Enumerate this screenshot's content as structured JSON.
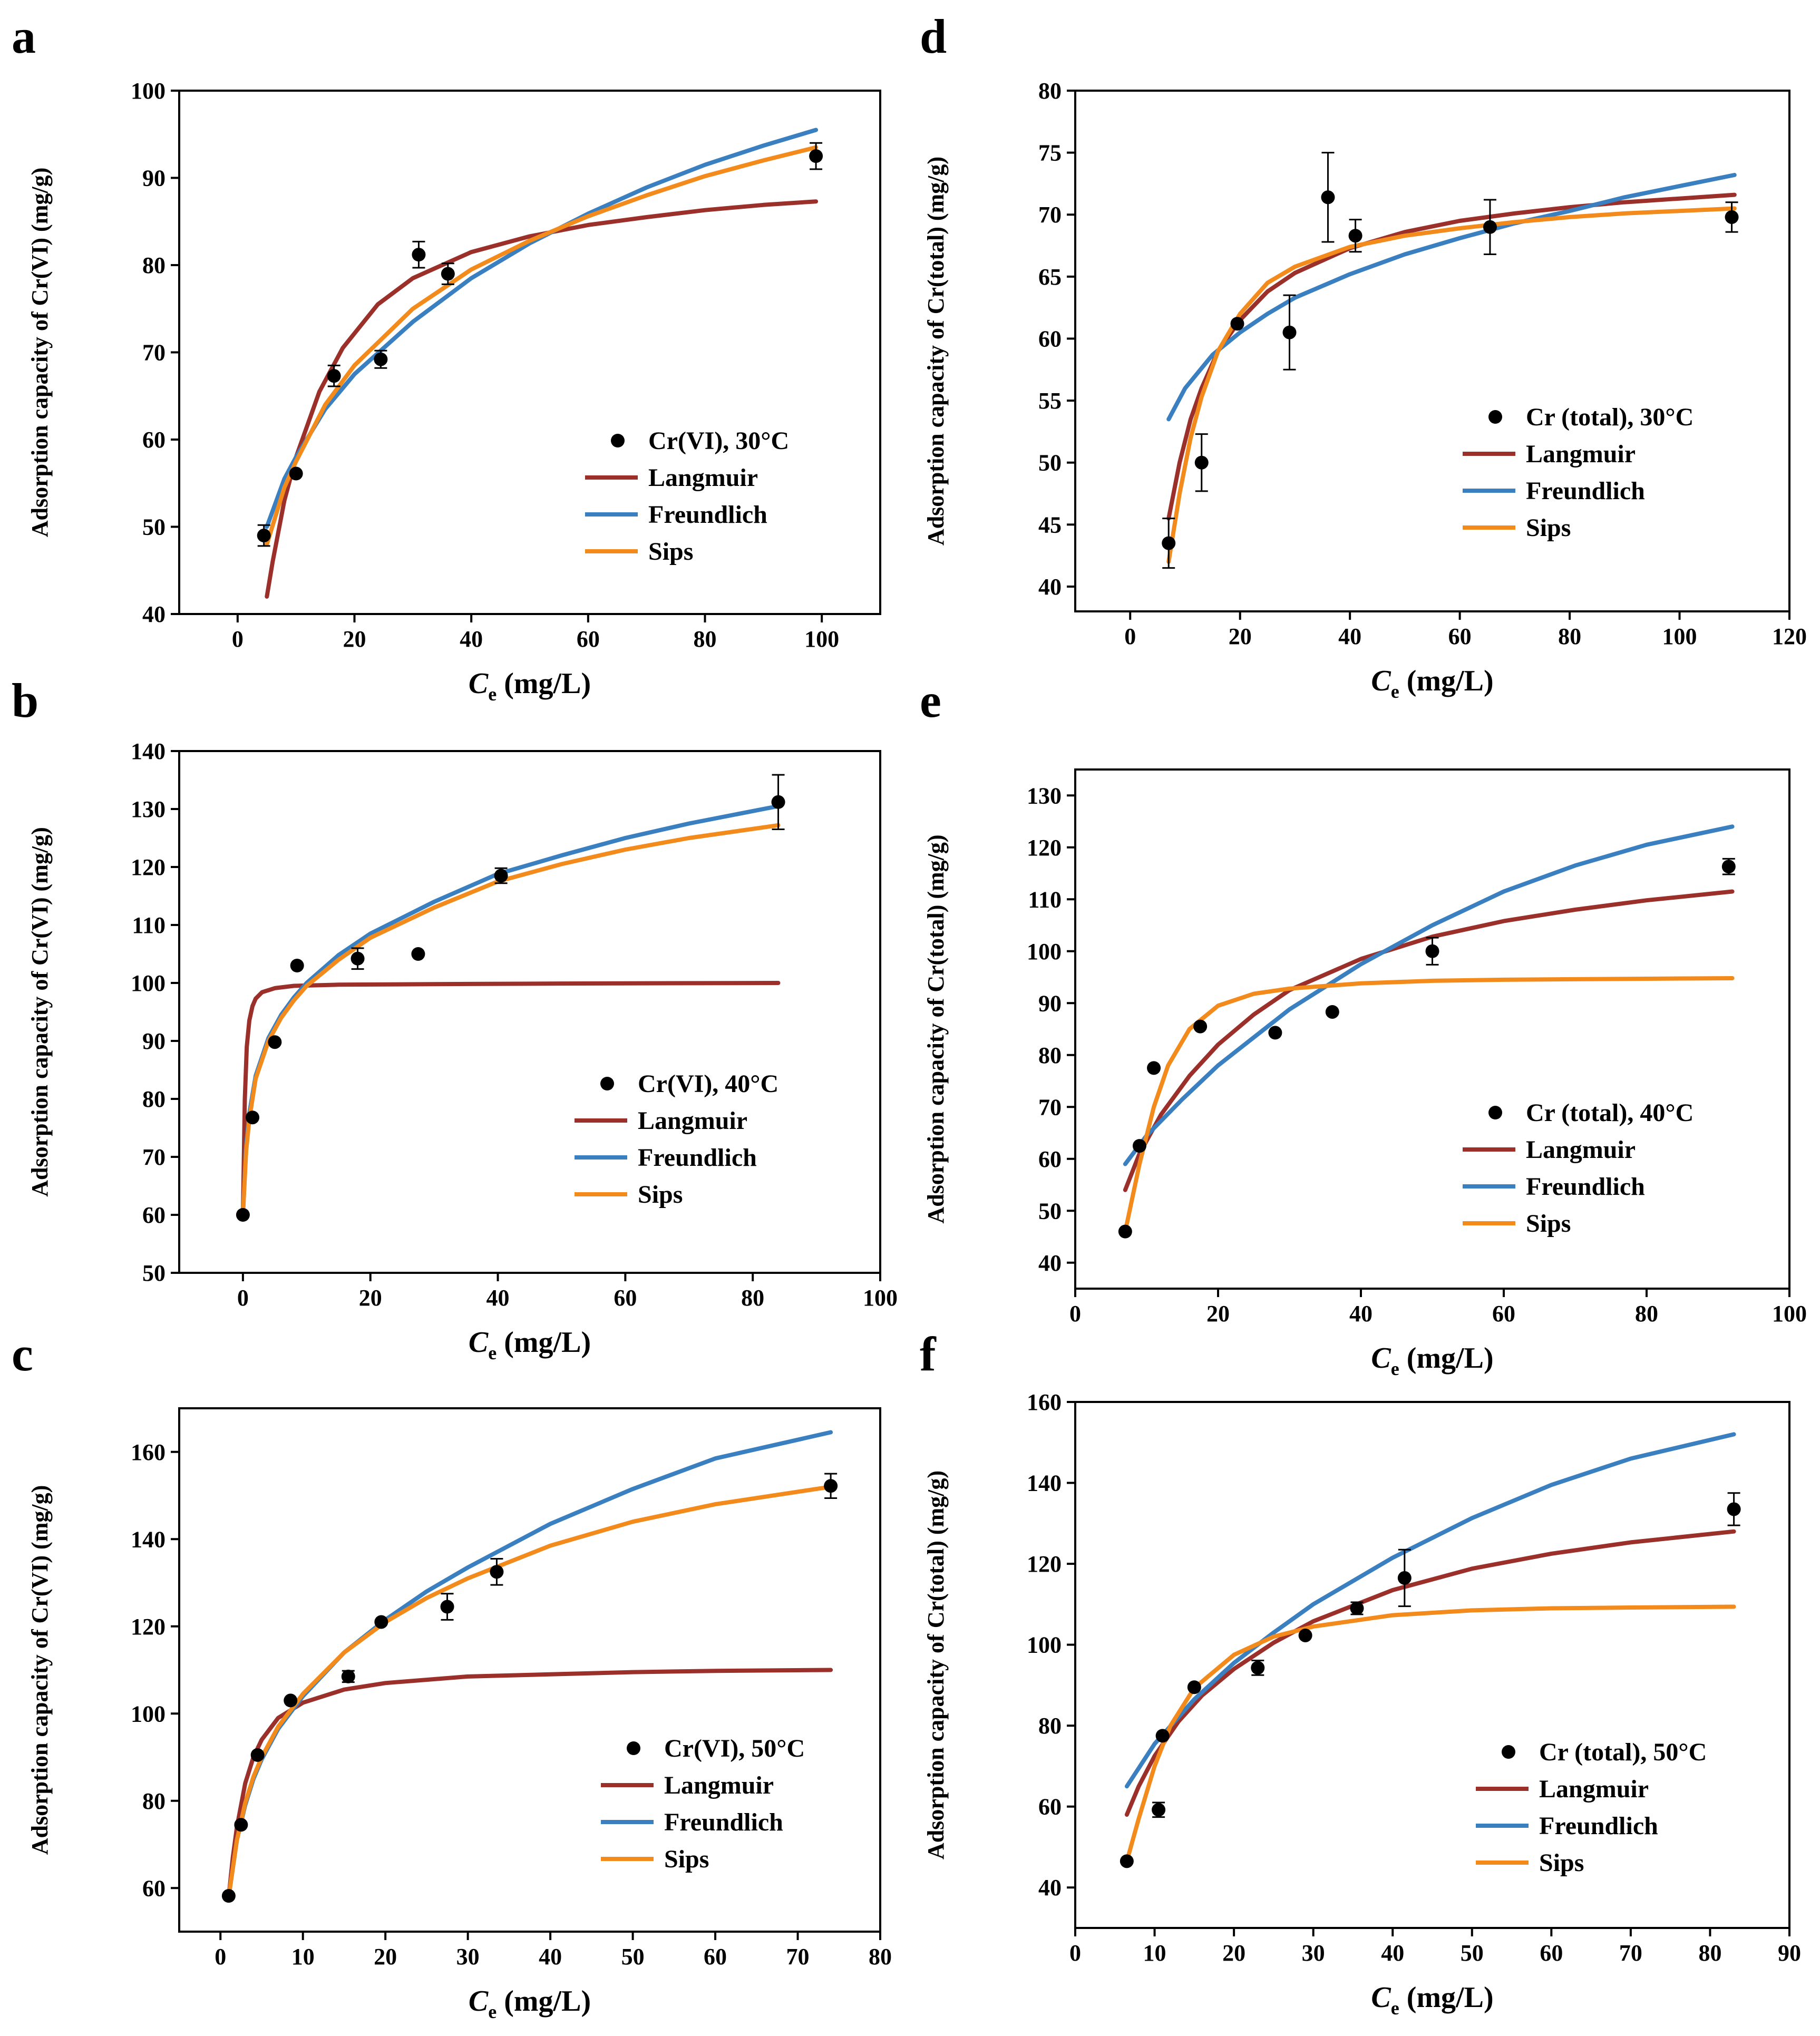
{
  "colors": {
    "Langmuir": "#9b2f2a",
    "Freundlich": "#3a7fbf",
    "Sips": "#f28a1c",
    "points": "#000000"
  },
  "chart_data": [
    {
      "panel": "a",
      "type": "scatter",
      "ylabel": "Adsorption capacity of Cr(VI) (mg/g)",
      "xlabel_base": "C",
      "xlabel_sub": "e",
      "xlabel_unit": " (mg/L)",
      "xlim": [
        -10,
        110
      ],
      "ylim": [
        40,
        100
      ],
      "xticks": [
        0,
        20,
        40,
        60,
        80,
        100
      ],
      "yticks": [
        40,
        50,
        60,
        70,
        80,
        90,
        100
      ],
      "legend": {
        "title": "Cr(VI), 30°C",
        "items": [
          "Langmuir",
          "Freundlich",
          "Sips"
        ]
      },
      "points": [
        {
          "x": 4.5,
          "y": 49,
          "err": 1.2
        },
        {
          "x": 10,
          "y": 56.1,
          "err": 0
        },
        {
          "x": 16.5,
          "y": 67.3,
          "err": 1.2
        },
        {
          "x": 24.5,
          "y": 69.2,
          "err": 1.0
        },
        {
          "x": 31,
          "y": 81.2,
          "err": 1.5
        },
        {
          "x": 36,
          "y": 79,
          "err": 1.2
        },
        {
          "x": 99,
          "y": 92.5,
          "err": 1.5
        }
      ],
      "series": [
        {
          "name": "Langmuir",
          "x": [
            5,
            6,
            8,
            10,
            14,
            18,
            24,
            30,
            40,
            50,
            60,
            70,
            80,
            90,
            99
          ],
          "y": [
            42,
            46,
            53,
            58,
            65.5,
            70.5,
            75.5,
            78.5,
            81.5,
            83.3,
            84.6,
            85.5,
            86.3,
            86.9,
            87.3
          ]
        },
        {
          "name": "Freundlich",
          "x": [
            5,
            8,
            10,
            15,
            20,
            30,
            40,
            50,
            60,
            70,
            80,
            90,
            99
          ],
          "y": [
            50,
            55.5,
            58,
            63.5,
            67.5,
            73.5,
            78.5,
            82.5,
            85.9,
            88.9,
            91.5,
            93.7,
            95.5
          ]
        },
        {
          "name": "Sips",
          "x": [
            5,
            8,
            10,
            15,
            20,
            30,
            40,
            50,
            60,
            70,
            80,
            90,
            99
          ],
          "y": [
            48,
            54.5,
            57.5,
            64,
            68.5,
            75,
            79.5,
            82.8,
            85.6,
            88,
            90.2,
            92,
            93.5
          ]
        }
      ]
    },
    {
      "panel": "b",
      "type": "scatter",
      "ylabel": "Adsorption capacity of Cr(VI) (mg/g)",
      "xlabel_base": "C",
      "xlabel_sub": "e",
      "xlabel_unit": " (mg/L)",
      "xlim": [
        -10,
        100
      ],
      "ylim": [
        50,
        140
      ],
      "xticks": [
        0,
        20,
        40,
        60,
        80,
        100
      ],
      "yticks": [
        50,
        60,
        70,
        80,
        90,
        100,
        110,
        120,
        130,
        140
      ],
      "legend": {
        "title": "Cr(VI), 40°C",
        "items": [
          "Langmuir",
          "Freundlich",
          "Sips"
        ]
      },
      "points": [
        {
          "x": 0,
          "y": 60,
          "err": 0
        },
        {
          "x": 1.5,
          "y": 76.8,
          "err": 0
        },
        {
          "x": 5,
          "y": 89.8,
          "err": 0
        },
        {
          "x": 8.5,
          "y": 103,
          "err": 0
        },
        {
          "x": 18,
          "y": 104.2,
          "err": 1.8
        },
        {
          "x": 27.5,
          "y": 105,
          "err": 0
        },
        {
          "x": 40.5,
          "y": 118.5,
          "err": 1.3
        },
        {
          "x": 84,
          "y": 131.2,
          "err": 4.7
        }
      ],
      "series": [
        {
          "name": "Langmuir",
          "x": [
            0,
            0.3,
            0.6,
            1,
            1.5,
            2,
            3,
            5,
            8,
            15,
            30,
            50,
            84
          ],
          "y": [
            60,
            80,
            89,
            93.5,
            96,
            97.3,
            98.4,
            99.1,
            99.5,
            99.7,
            99.8,
            99.9,
            100
          ]
        },
        {
          "name": "Freundlich",
          "x": [
            0,
            0.5,
            1,
            2,
            4,
            6,
            8,
            10,
            15,
            20,
            30,
            40,
            50,
            60,
            70,
            84
          ],
          "y": [
            60,
            72,
            77.5,
            84,
            90.5,
            94.5,
            97.5,
            100,
            104.8,
            108.5,
            114,
            118.8,
            122,
            125,
            127.5,
            130.5
          ]
        },
        {
          "name": "Sips",
          "x": [
            0,
            0.5,
            1,
            2,
            4,
            6,
            8,
            10,
            15,
            20,
            30,
            40,
            50,
            60,
            70,
            84
          ],
          "y": [
            60,
            71,
            76.5,
            83.5,
            90,
            94,
            97,
            99.5,
            104,
            107.8,
            113,
            117.5,
            120.5,
            123,
            125,
            127.2
          ]
        }
      ]
    },
    {
      "panel": "c",
      "type": "scatter",
      "ylabel": "Adsorption capacity of Cr(VI) (mg/g)",
      "xlabel_base": "C",
      "xlabel_sub": "e",
      "xlabel_unit": " (mg/L)",
      "xlim": [
        -5,
        80
      ],
      "ylim": [
        50,
        170
      ],
      "xticks": [
        0,
        10,
        20,
        30,
        40,
        50,
        60,
        70,
        80
      ],
      "yticks": [
        60,
        80,
        100,
        120,
        140,
        160
      ],
      "legend": {
        "title": "Cr(VI), 50°C",
        "items": [
          "Langmuir",
          "Freundlich",
          "Sips"
        ]
      },
      "points": [
        {
          "x": 1,
          "y": 58.2,
          "err": 0
        },
        {
          "x": 2.5,
          "y": 74.5,
          "err": 0
        },
        {
          "x": 4.5,
          "y": 90.5,
          "err": 0
        },
        {
          "x": 8.5,
          "y": 103,
          "err": 0
        },
        {
          "x": 15.5,
          "y": 108.5,
          "err": 1.3
        },
        {
          "x": 19.5,
          "y": 121,
          "err": 0
        },
        {
          "x": 27.5,
          "y": 124.5,
          "err": 3.0
        },
        {
          "x": 33.5,
          "y": 132.5,
          "err": 3.0
        },
        {
          "x": 74,
          "y": 152.2,
          "err": 2.8
        }
      ],
      "series": [
        {
          "name": "Langmuir",
          "x": [
            1,
            1.5,
            2,
            3,
            4,
            5,
            7,
            10,
            15,
            20,
            30,
            40,
            50,
            60,
            74
          ],
          "y": [
            58,
            67,
            74,
            84,
            90,
            94,
            99,
            102.5,
            105.5,
            107,
            108.5,
            109,
            109.5,
            109.8,
            110
          ]
        },
        {
          "name": "Freundlich",
          "x": [
            1,
            2,
            3,
            4,
            5,
            7,
            10,
            15,
            20,
            25,
            30,
            40,
            50,
            60,
            74
          ],
          "y": [
            58,
            71,
            79,
            85,
            89.5,
            96.5,
            104,
            114,
            121.5,
            128,
            133.5,
            143.5,
            151.5,
            158.5,
            164.5
          ]
        },
        {
          "name": "Sips",
          "x": [
            1,
            2,
            3,
            4,
            5,
            7,
            10,
            15,
            20,
            25,
            30,
            40,
            50,
            60,
            74
          ],
          "y": [
            58,
            71,
            79.5,
            85.5,
            90,
            97,
            104.5,
            114,
            121,
            126.5,
            131,
            138.5,
            144,
            148,
            152
          ]
        }
      ]
    },
    {
      "panel": "d",
      "type": "scatter",
      "ylabel": "Adsorption capacity of Cr(total) (mg/g)",
      "xlabel_base": "C",
      "xlabel_sub": "e",
      "xlabel_unit": " (mg/L)",
      "xlim": [
        -10,
        120
      ],
      "ylim": [
        38,
        80
      ],
      "xticks": [
        0,
        20,
        40,
        60,
        80,
        100,
        120
      ],
      "yticks": [
        40,
        45,
        50,
        55,
        60,
        65,
        70,
        75,
        80
      ],
      "legend": {
        "title": "Cr (total), 30°C",
        "items": [
          "Langmuir",
          "Freundlich",
          "Sips"
        ]
      },
      "points": [
        {
          "x": 7,
          "y": 43.5,
          "err": 2.0
        },
        {
          "x": 13,
          "y": 50,
          "err": 2.3
        },
        {
          "x": 19.5,
          "y": 61.2,
          "err": 0
        },
        {
          "x": 29,
          "y": 60.5,
          "err": 3.0
        },
        {
          "x": 36,
          "y": 71.4,
          "err": 3.6
        },
        {
          "x": 41,
          "y": 68.3,
          "err": 1.3
        },
        {
          "x": 65.5,
          "y": 69,
          "err": 2.2
        },
        {
          "x": 109.5,
          "y": 69.8,
          "err": 1.2
        }
      ],
      "series": [
        {
          "name": "Langmuir",
          "x": [
            7,
            9,
            11,
            13,
            16,
            20,
            25,
            30,
            40,
            50,
            60,
            70,
            80,
            90,
            100,
            110
          ],
          "y": [
            45.5,
            50,
            53.5,
            56,
            59,
            61.5,
            63.8,
            65.3,
            67.3,
            68.6,
            69.5,
            70.1,
            70.6,
            71,
            71.3,
            71.6
          ]
        },
        {
          "name": "Freundlich",
          "x": [
            7,
            10,
            15,
            20,
            25,
            30,
            40,
            50,
            60,
            70,
            80,
            90,
            100,
            110
          ],
          "y": [
            53.5,
            56,
            58.7,
            60.5,
            62,
            63.3,
            65.2,
            66.8,
            68.1,
            69.3,
            70.3,
            71.4,
            72.3,
            73.2
          ]
        },
        {
          "name": "Sips",
          "x": [
            7,
            9,
            11,
            13,
            16,
            20,
            25,
            30,
            40,
            50,
            60,
            70,
            80,
            90,
            100,
            110
          ],
          "y": [
            42,
            47.5,
            52,
            55.3,
            59,
            62,
            64.5,
            65.8,
            67.4,
            68.3,
            68.9,
            69.4,
            69.8,
            70.1,
            70.3,
            70.5
          ]
        }
      ]
    },
    {
      "panel": "e",
      "type": "scatter",
      "ylabel": "Adsorption capacity of Cr(total) (mg/g)",
      "xlabel_base": "C",
      "xlabel_sub": "e",
      "xlabel_unit": " (mg/L)",
      "xlim": [
        0,
        100
      ],
      "ylim": [
        35,
        135
      ],
      "xticks": [
        0,
        20,
        40,
        60,
        80,
        100
      ],
      "yticks": [
        40,
        50,
        60,
        70,
        80,
        90,
        100,
        110,
        120,
        130
      ],
      "legend": {
        "title": "Cr (total), 40°C",
        "items": [
          "Langmuir",
          "Freundlich",
          "Sips"
        ]
      },
      "points": [
        {
          "x": 7,
          "y": 46,
          "err": 0
        },
        {
          "x": 9,
          "y": 62.5,
          "err": 0
        },
        {
          "x": 11,
          "y": 77.5,
          "err": 0
        },
        {
          "x": 17.5,
          "y": 85.5,
          "err": 0
        },
        {
          "x": 28,
          "y": 84.3,
          "err": 0
        },
        {
          "x": 36,
          "y": 88.3,
          "err": 0
        },
        {
          "x": 50,
          "y": 100,
          "err": 2.6
        },
        {
          "x": 91.5,
          "y": 116.3,
          "err": 1.5
        }
      ],
      "series": [
        {
          "name": "Langmuir",
          "x": [
            7,
            9,
            12,
            16,
            20,
            25,
            30,
            40,
            50,
            60,
            70,
            80,
            92
          ],
          "y": [
            54,
            61,
            68.5,
            76,
            82,
            87.8,
            92.5,
            98.5,
            102.8,
            105.8,
            108,
            109.8,
            111.5
          ]
        },
        {
          "name": "Freundlich",
          "x": [
            7,
            10,
            15,
            20,
            30,
            40,
            50,
            60,
            70,
            80,
            92
          ],
          "y": [
            59,
            64.5,
            71.5,
            78,
            88.8,
            97.5,
            105,
            111.5,
            116.5,
            120.5,
            124
          ]
        },
        {
          "name": "Sips",
          "x": [
            7,
            9,
            11,
            13,
            16,
            20,
            25,
            30,
            40,
            50,
            60,
            70,
            80,
            92
          ],
          "y": [
            46,
            59,
            70,
            78,
            85,
            89.5,
            91.8,
            92.8,
            93.8,
            94.3,
            94.5,
            94.6,
            94.7,
            94.8
          ]
        }
      ]
    },
    {
      "panel": "f",
      "type": "scatter",
      "ylabel": "Adsorption capacity of Cr(total) (mg/g)",
      "xlabel_base": "C",
      "xlabel_sub": "e",
      "xlabel_unit": " (mg/L)",
      "xlim": [
        0,
        90
      ],
      "ylim": [
        30,
        160
      ],
      "xticks": [
        0,
        10,
        20,
        30,
        40,
        50,
        60,
        70,
        80,
        90
      ],
      "yticks": [
        40,
        60,
        80,
        100,
        120,
        140,
        160
      ],
      "legend": {
        "title": "Cr (total), 50°C",
        "items": [
          "Langmuir",
          "Freundlich",
          "Sips"
        ]
      },
      "points": [
        {
          "x": 6.5,
          "y": 46.5,
          "err": 0
        },
        {
          "x": 10.5,
          "y": 59.2,
          "err": 1.8
        },
        {
          "x": 11,
          "y": 77.5,
          "err": 0
        },
        {
          "x": 15,
          "y": 89.5,
          "err": 0
        },
        {
          "x": 23,
          "y": 94.3,
          "err": 1.8
        },
        {
          "x": 29,
          "y": 102.3,
          "err": 0
        },
        {
          "x": 35.5,
          "y": 109,
          "err": 1.5
        },
        {
          "x": 41.5,
          "y": 116.5,
          "err": 7.0
        },
        {
          "x": 83,
          "y": 133.5,
          "err": 4.0
        }
      ],
      "series": [
        {
          "name": "Langmuir",
          "x": [
            6.5,
            8,
            10,
            13,
            16,
            20,
            25,
            30,
            40,
            50,
            60,
            70,
            83
          ],
          "y": [
            58,
            65,
            72.5,
            81,
            87.5,
            94,
            100.5,
            105.8,
            113.5,
            118.8,
            122.5,
            125.3,
            128
          ]
        },
        {
          "name": "Freundlich",
          "x": [
            6.5,
            10,
            15,
            20,
            25,
            30,
            40,
            50,
            60,
            70,
            83
          ],
          "y": [
            65,
            75.5,
            86.5,
            95.5,
            103,
            110,
            121.5,
            131.3,
            139.5,
            146,
            152
          ]
        },
        {
          "name": "Sips",
          "x": [
            6.5,
            8,
            10,
            12,
            15,
            20,
            25,
            30,
            40,
            50,
            60,
            70,
            83
          ],
          "y": [
            46.5,
            57,
            70,
            80,
            89.3,
            97.5,
            102,
            104.5,
            107.3,
            108.5,
            109,
            109.2,
            109.4
          ]
        }
      ]
    }
  ]
}
